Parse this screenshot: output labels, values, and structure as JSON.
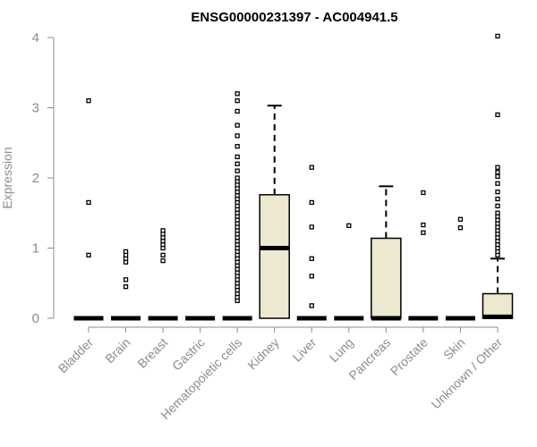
{
  "chart_data": {
    "type": "box",
    "title": "ENSG00000231397 - AC004941.5",
    "ylabel": "Expression",
    "ylim": [
      0,
      4
    ],
    "yticks": [
      "0",
      "1",
      "2",
      "3",
      "4"
    ],
    "box_fill": "#ede8d0",
    "categories": [
      "Bladder",
      "Brain",
      "Breast",
      "Gastric",
      "Hematopoietic cells",
      "Kidney",
      "Liver",
      "Lung",
      "Pancreas",
      "Prostate",
      "Skin",
      "Unknown / Other"
    ],
    "boxes": [
      {
        "q1": 0,
        "median": 0,
        "q3": 0,
        "whisker_low": 0,
        "whisker_high": 0,
        "outliers": [
          0.9,
          1.65,
          3.1
        ]
      },
      {
        "q1": 0,
        "median": 0,
        "q3": 0,
        "whisker_low": 0,
        "whisker_high": 0,
        "outliers": [
          0.45,
          0.55,
          0.8,
          0.85,
          0.9,
          0.95
        ]
      },
      {
        "q1": 0,
        "median": 0,
        "q3": 0,
        "whisker_low": 0,
        "whisker_high": 0,
        "outliers": [
          0.82,
          0.9,
          1.0,
          1.05,
          1.1,
          1.15,
          1.2,
          1.25
        ]
      },
      {
        "q1": 0,
        "median": 0,
        "q3": 0,
        "whisker_low": 0,
        "whisker_high": 0,
        "outliers": []
      },
      {
        "q1": 0,
        "median": 0,
        "q3": 0,
        "whisker_low": 0,
        "whisker_high": 0,
        "outliers": [
          0.25,
          0.3,
          0.35,
          0.4,
          0.45,
          0.5,
          0.55,
          0.6,
          0.65,
          0.7,
          0.75,
          0.8,
          0.85,
          0.9,
          0.95,
          1.0,
          1.05,
          1.1,
          1.15,
          1.2,
          1.25,
          1.3,
          1.35,
          1.4,
          1.45,
          1.5,
          1.55,
          1.6,
          1.65,
          1.7,
          1.75,
          1.8,
          1.85,
          1.9,
          1.95,
          2.0,
          2.1,
          2.2,
          2.3,
          2.45,
          2.6,
          2.75,
          2.95,
          3.1,
          3.2
        ]
      },
      {
        "q1": 0,
        "median": 1.0,
        "q3": 1.76,
        "whisker_low": 0,
        "whisker_high": 3.03,
        "outliers": []
      },
      {
        "q1": 0,
        "median": 0,
        "q3": 0,
        "whisker_low": 0,
        "whisker_high": 0,
        "outliers": [
          0.18,
          0.6,
          0.85,
          1.3,
          1.65,
          2.15
        ]
      },
      {
        "q1": 0,
        "median": 0,
        "q3": 0,
        "whisker_low": 0,
        "whisker_high": 0,
        "outliers": [
          1.32
        ]
      },
      {
        "q1": 0,
        "median": 0,
        "q3": 1.14,
        "whisker_low": 0,
        "whisker_high": 1.88,
        "outliers": []
      },
      {
        "q1": 0,
        "median": 0,
        "q3": 0,
        "whisker_low": 0,
        "whisker_high": 0,
        "outliers": [
          1.22,
          1.33,
          1.79
        ]
      },
      {
        "q1": 0,
        "median": 0,
        "q3": 0,
        "whisker_low": 0,
        "whisker_high": 0,
        "outliers": [
          1.29,
          1.41
        ]
      },
      {
        "q1": 0,
        "median": 0.02,
        "q3": 0.35,
        "whisker_low": 0,
        "whisker_high": 0.85,
        "outliers": [
          0.9,
          0.95,
          1.0,
          1.05,
          1.1,
          1.15,
          1.2,
          1.25,
          1.3,
          1.35,
          1.4,
          1.45,
          1.5,
          1.6,
          1.7,
          1.8,
          1.92,
          2.02,
          2.08,
          2.15,
          2.9,
          4.02
        ]
      }
    ]
  }
}
